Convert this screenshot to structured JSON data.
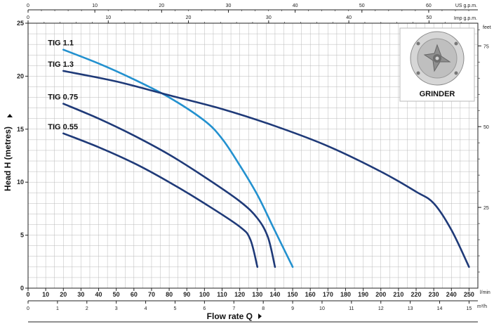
{
  "chart_data": {
    "type": "line",
    "xlabel": "Flow rate Q",
    "ylabel": "Head H (metres)",
    "x_unit": "l/min",
    "xlim": [
      0,
      255
    ],
    "ylim": [
      0,
      25
    ],
    "grid": true,
    "x_ticks": [
      "0",
      "10",
      "20",
      "30",
      "40",
      "50",
      "60",
      "70",
      "80",
      "90",
      "100",
      "110",
      "120",
      "130",
      "140",
      "150",
      "160",
      "170",
      "180",
      "190",
      "200",
      "210",
      "220",
      "230",
      "240",
      "250"
    ],
    "y_ticks": [
      "0",
      "5",
      "10",
      "15",
      "20",
      "25"
    ],
    "secondary_axes": {
      "m3h": {
        "unit": "m³/h",
        "ticks": [
          "0",
          "1",
          "2",
          "3",
          "4",
          "5",
          "6",
          "7",
          "8",
          "9",
          "10",
          "11",
          "12",
          "13",
          "14",
          "15"
        ]
      },
      "us_gpm": {
        "unit": "US g.p.m.",
        "ticks": [
          "0",
          "10",
          "20",
          "30",
          "40",
          "50",
          "60"
        ]
      },
      "imp_gpm": {
        "unit": "Imp g.p.m.",
        "ticks": [
          "0",
          "10",
          "20",
          "30",
          "40",
          "50"
        ]
      },
      "feet": {
        "unit": "feet",
        "ticks": [
          "25",
          "50",
          "75"
        ]
      }
    },
    "series": [
      {
        "name": "TIG 1.1",
        "color": "#2391cf",
        "x": [
          20,
          40,
          60,
          80,
          100,
          110,
          120,
          130,
          140,
          150
        ],
        "y": [
          22.5,
          21.2,
          19.7,
          18.0,
          15.8,
          14.1,
          11.6,
          8.8,
          5.4,
          2.0
        ]
      },
      {
        "name": "TIG 1.3",
        "color": "#1f3a78",
        "x": [
          20,
          50,
          80,
          110,
          140,
          170,
          200,
          220,
          230,
          240,
          250
        ],
        "y": [
          20.5,
          19.5,
          18.2,
          16.9,
          15.3,
          13.4,
          11.0,
          9.1,
          8.0,
          5.5,
          2.0
        ]
      },
      {
        "name": "TIG 0.75",
        "color": "#1f3a78",
        "x": [
          20,
          40,
          60,
          80,
          100,
          120,
          130,
          136,
          140
        ],
        "y": [
          17.4,
          16.0,
          14.4,
          12.6,
          10.5,
          8.2,
          6.6,
          4.8,
          2.0
        ]
      },
      {
        "name": "TIG 0.55",
        "color": "#1f3a78",
        "x": [
          20,
          40,
          60,
          80,
          100,
          120,
          126,
          130
        ],
        "y": [
          14.6,
          13.3,
          11.8,
          10.0,
          8.0,
          5.8,
          4.6,
          2.0
        ]
      }
    ]
  },
  "inset": {
    "label": "GRINDER",
    "icon": "grinder-impeller-icon"
  }
}
